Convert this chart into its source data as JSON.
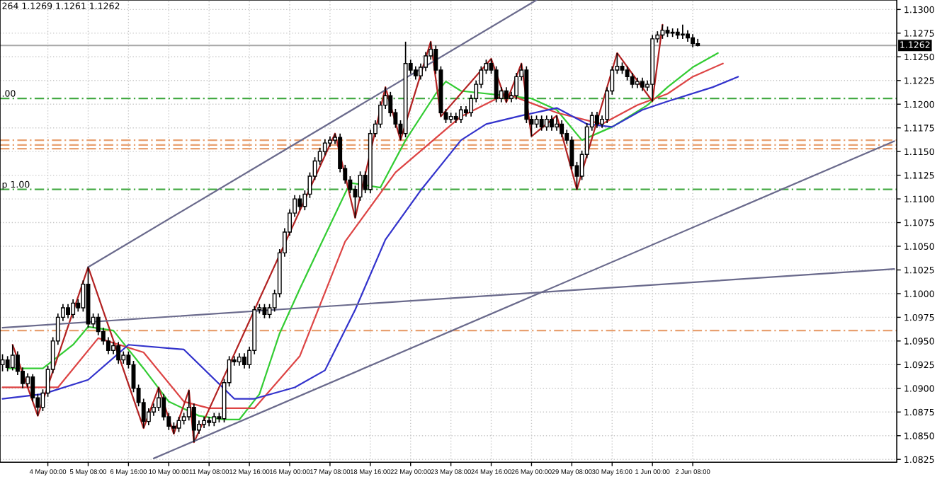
{
  "chart_data": {
    "type": "candlestick",
    "annotations": [
      "264 1.1269 1.1261 1.1262",
      {
        "text": ".00",
        "y": 1.1206
      },
      {
        "text": "p 1.00",
        "y": 1.111
      }
    ],
    "categories": [
      null,
      null,
      null,
      null,
      null,
      null,
      null,
      null,
      null,
      "4 May 00:00",
      null,
      null,
      null,
      null,
      null,
      null,
      null,
      "5 May 08:00",
      null,
      null,
      null,
      null,
      null,
      null,
      null,
      "6 May 16:00",
      null,
      null,
      null,
      null,
      null,
      null,
      null,
      "10 May 00:00",
      null,
      null,
      null,
      null,
      null,
      null,
      null,
      "11 May 08:00",
      null,
      null,
      null,
      null,
      null,
      null,
      null,
      "12 May 16:00",
      null,
      null,
      null,
      null,
      null,
      null,
      null,
      "16 May 00:00",
      null,
      null,
      null,
      null,
      null,
      null,
      null,
      "17 May 08:00",
      null,
      null,
      null,
      null,
      null,
      null,
      null,
      "18 May 16:00",
      null,
      null,
      null,
      null,
      null,
      null,
      null,
      "22 May 00:00",
      null,
      null,
      null,
      null,
      null,
      null,
      null,
      "23 May 08:00",
      null,
      null,
      null,
      null,
      null,
      null,
      null,
      "24 May 16:00",
      null,
      null,
      null,
      null,
      null,
      null,
      null,
      "26 May 00:00",
      null,
      null,
      null,
      null,
      null,
      null,
      null,
      "29 May 08:00",
      null,
      null,
      null,
      null,
      null,
      null,
      null,
      "30 May 16:00",
      null,
      null,
      null,
      null,
      null,
      null,
      null,
      "1 Jun 00:00",
      null,
      null,
      null,
      null,
      null,
      null,
      null,
      "2 Jun 08:00",
      null,
      null,
      null,
      null,
      null,
      null,
      null,
      null,
      null,
      null,
      null,
      null,
      null,
      null,
      null,
      null,
      null,
      null,
      null,
      null,
      null,
      null,
      null,
      null,
      null,
      null,
      null,
      null,
      null,
      null,
      null,
      null,
      null,
      null,
      null,
      null,
      null,
      null,
      null,
      null
    ],
    "ohlc": [
      [
        1.0925,
        1.0936,
        1.0918,
        1.093
      ],
      [
        1.093,
        1.0934,
        1.0918,
        1.0922
      ],
      [
        1.0922,
        1.0946,
        1.0919,
        1.0935
      ],
      [
        1.0935,
        1.0939,
        1.0914,
        1.0918
      ],
      [
        1.0918,
        1.0922,
        1.09,
        1.0905
      ],
      [
        1.0905,
        1.0916,
        1.0901,
        1.0912
      ],
      [
        1.0912,
        1.0915,
        1.0886,
        1.089
      ],
      [
        1.089,
        1.0894,
        1.0871,
        1.088
      ],
      [
        1.088,
        1.0899,
        1.0876,
        1.0895
      ],
      [
        1.0895,
        1.0924,
        1.0891,
        1.092
      ],
      [
        1.092,
        1.0954,
        1.0916,
        1.095
      ],
      [
        1.095,
        1.0979,
        1.0946,
        1.0975
      ],
      [
        1.0975,
        1.0989,
        1.0971,
        1.0985
      ],
      [
        1.0985,
        1.0989,
        1.0974,
        1.0978
      ],
      [
        1.0978,
        1.0994,
        1.0974,
        1.099
      ],
      [
        1.099,
        1.0994,
        1.0981,
        1.0985
      ],
      [
        1.0985,
        1.1014,
        1.0981,
        1.101
      ],
      [
        1.101,
        1.1028,
        1.0964,
        1.0968
      ],
      [
        1.0968,
        1.0979,
        1.0964,
        1.0975
      ],
      [
        1.0975,
        1.0979,
        1.0956,
        1.096
      ],
      [
        1.096,
        1.0964,
        1.0946,
        1.095
      ],
      [
        1.095,
        1.0954,
        1.0936,
        1.094
      ],
      [
        1.094,
        1.0949,
        1.0936,
        1.0945
      ],
      [
        1.0945,
        1.0949,
        1.0926,
        1.093
      ],
      [
        1.093,
        1.0939,
        1.0926,
        1.0935
      ],
      [
        1.0935,
        1.0939,
        1.0921,
        1.0925
      ],
      [
        1.0925,
        1.0929,
        1.0896,
        1.09
      ],
      [
        1.09,
        1.0904,
        1.0881,
        1.0885
      ],
      [
        1.0885,
        1.0889,
        1.0858,
        1.0865
      ],
      [
        1.0865,
        1.0879,
        1.0861,
        1.0875
      ],
      [
        1.0875,
        1.0884,
        1.0871,
        1.088
      ],
      [
        1.088,
        1.0901,
        1.0876,
        1.089
      ],
      [
        1.089,
        1.0894,
        1.0866,
        1.087
      ],
      [
        1.087,
        1.0874,
        1.0856,
        1.086
      ],
      [
        1.086,
        1.0864,
        1.0852,
        1.0858
      ],
      [
        1.0858,
        1.087,
        1.0854,
        1.0866
      ],
      [
        1.0866,
        1.0874,
        1.0862,
        1.087
      ],
      [
        1.087,
        1.0898,
        1.0866,
        1.088
      ],
      [
        1.088,
        1.0884,
        1.0843,
        1.0856
      ],
      [
        1.0856,
        1.0866,
        1.0852,
        1.0862
      ],
      [
        1.0862,
        1.087,
        1.0858,
        1.0866
      ],
      [
        1.0866,
        1.087,
        1.086,
        1.0864
      ],
      [
        1.0864,
        1.0874,
        1.086,
        1.087
      ],
      [
        1.087,
        1.0874,
        1.0864,
        1.0868
      ],
      [
        1.0868,
        1.091,
        1.0864,
        1.0906
      ],
      [
        1.0906,
        1.0934,
        1.0902,
        1.093
      ],
      [
        1.093,
        1.0934,
        1.0924,
        1.0928
      ],
      [
        1.0928,
        1.0937,
        1.0924,
        1.0933
      ],
      [
        1.0933,
        1.0937,
        1.0921,
        1.0925
      ],
      [
        1.0925,
        1.0944,
        1.0921,
        1.094
      ],
      [
        1.094,
        1.0987,
        1.0936,
        1.0983
      ],
      [
        1.0983,
        1.0989,
        1.0979,
        1.0985
      ],
      [
        1.0985,
        1.0989,
        1.0974,
        1.0978
      ],
      [
        1.0978,
        1.0989,
        1.0974,
        1.0985
      ],
      [
        1.0985,
        1.1004,
        1.0981,
        1.1
      ],
      [
        1.1,
        1.1047,
        1.0996,
        1.1043
      ],
      [
        1.1043,
        1.1069,
        1.1039,
        1.1065
      ],
      [
        1.1065,
        1.1089,
        1.1061,
        1.1085
      ],
      [
        1.1085,
        1.1104,
        1.1081,
        1.11
      ],
      [
        1.11,
        1.1104,
        1.1088,
        1.1092
      ],
      [
        1.1092,
        1.1109,
        1.1088,
        1.1105
      ],
      [
        1.1105,
        1.1128,
        1.1101,
        1.1124
      ],
      [
        1.1124,
        1.1144,
        1.112,
        1.114
      ],
      [
        1.114,
        1.1154,
        1.1136,
        1.115
      ],
      [
        1.115,
        1.1163,
        1.1146,
        1.1159
      ],
      [
        1.1159,
        1.1166,
        1.1155,
        1.1162
      ],
      [
        1.1162,
        1.1169,
        1.1158,
        1.1165
      ],
      [
        1.1165,
        1.1169,
        1.1128,
        1.1132
      ],
      [
        1.1132,
        1.1136,
        1.1116,
        1.112
      ],
      [
        1.112,
        1.1124,
        1.1106,
        1.111
      ],
      [
        1.111,
        1.1114,
        1.108,
        1.1102
      ],
      [
        1.1102,
        1.1129,
        1.1098,
        1.1125
      ],
      [
        1.1125,
        1.1129,
        1.1106,
        1.111
      ],
      [
        1.111,
        1.1173,
        1.1106,
        1.1169
      ],
      [
        1.1169,
        1.1183,
        1.1165,
        1.1179
      ],
      [
        1.1179,
        1.1203,
        1.1175,
        1.1199
      ],
      [
        1.1199,
        1.1218,
        1.1195,
        1.1209
      ],
      [
        1.1209,
        1.1213,
        1.1187,
        1.1191
      ],
      [
        1.1191,
        1.1195,
        1.1175,
        1.1179
      ],
      [
        1.1179,
        1.1183,
        1.1162,
        1.1169
      ],
      [
        1.1169,
        1.1266,
        1.1165,
        1.1243
      ],
      [
        1.1243,
        1.1247,
        1.1232,
        1.1236
      ],
      [
        1.1236,
        1.124,
        1.1226,
        1.123
      ],
      [
        1.123,
        1.1243,
        1.1226,
        1.1239
      ],
      [
        1.1239,
        1.1255,
        1.1235,
        1.1251
      ],
      [
        1.1251,
        1.1266,
        1.1247,
        1.1258
      ],
      [
        1.1258,
        1.1262,
        1.1232,
        1.1236
      ],
      [
        1.1236,
        1.124,
        1.1187,
        1.1191
      ],
      [
        1.1191,
        1.1195,
        1.118,
        1.1184
      ],
      [
        1.1184,
        1.1191,
        1.118,
        1.1187
      ],
      [
        1.1187,
        1.1191,
        1.118,
        1.1184
      ],
      [
        1.1184,
        1.1198,
        1.118,
        1.1194
      ],
      [
        1.1194,
        1.1198,
        1.1187,
        1.1191
      ],
      [
        1.1191,
        1.121,
        1.1187,
        1.1206
      ],
      [
        1.1206,
        1.1225,
        1.1202,
        1.1221
      ],
      [
        1.1221,
        1.124,
        1.1217,
        1.1236
      ],
      [
        1.1236,
        1.1247,
        1.1232,
        1.1243
      ],
      [
        1.1243,
        1.1248,
        1.1232,
        1.1236
      ],
      [
        1.1236,
        1.124,
        1.1202,
        1.1206
      ],
      [
        1.1206,
        1.1218,
        1.1202,
        1.1214
      ],
      [
        1.1214,
        1.1218,
        1.1202,
        1.1206
      ],
      [
        1.1206,
        1.1213,
        1.1202,
        1.1209
      ],
      [
        1.1209,
        1.1233,
        1.1205,
        1.1229
      ],
      [
        1.1229,
        1.1243,
        1.1225,
        1.1236
      ],
      [
        1.1236,
        1.124,
        1.118,
        1.1184
      ],
      [
        1.1184,
        1.1188,
        1.1166,
        1.1179
      ],
      [
        1.1179,
        1.1188,
        1.1175,
        1.1184
      ],
      [
        1.1184,
        1.1188,
        1.1172,
        1.1176
      ],
      [
        1.1176,
        1.1188,
        1.1172,
        1.1184
      ],
      [
        1.1184,
        1.1188,
        1.1172,
        1.1176
      ],
      [
        1.1176,
        1.1188,
        1.1172,
        1.1179
      ],
      [
        1.1179,
        1.1183,
        1.1165,
        1.1169
      ],
      [
        1.1169,
        1.1173,
        1.1158,
        1.1162
      ],
      [
        1.1162,
        1.1166,
        1.1131,
        1.1135
      ],
      [
        1.1135,
        1.1139,
        1.111,
        1.1124
      ],
      [
        1.1124,
        1.1151,
        1.112,
        1.1147
      ],
      [
        1.1147,
        1.118,
        1.1143,
        1.1176
      ],
      [
        1.1176,
        1.1192,
        1.1172,
        1.1188
      ],
      [
        1.1188,
        1.1192,
        1.1175,
        1.1179
      ],
      [
        1.1179,
        1.1188,
        1.1175,
        1.1184
      ],
      [
        1.1184,
        1.1218,
        1.118,
        1.1214
      ],
      [
        1.1214,
        1.124,
        1.121,
        1.1236
      ],
      [
        1.1236,
        1.1254,
        1.1232,
        1.124
      ],
      [
        1.124,
        1.1244,
        1.1232,
        1.1236
      ],
      [
        1.1236,
        1.124,
        1.1225,
        1.1229
      ],
      [
        1.1229,
        1.1233,
        1.1217,
        1.1221
      ],
      [
        1.1221,
        1.1228,
        1.1217,
        1.1224
      ],
      [
        1.1224,
        1.1228,
        1.1214,
        1.1218
      ],
      [
        1.1218,
        1.1225,
        1.1214,
        1.1221
      ],
      [
        1.1221,
        1.1273,
        1.1203,
        1.1269
      ],
      [
        1.1269,
        1.1277,
        1.1265,
        1.1273
      ],
      [
        1.1273,
        1.1284,
        1.1269,
        1.1278
      ],
      [
        1.1278,
        1.1282,
        1.1271,
        1.1275
      ],
      [
        1.1275,
        1.128,
        1.1271,
        1.1276
      ],
      [
        1.1276,
        1.128,
        1.1269,
        1.1273
      ],
      [
        1.1273,
        1.1284,
        1.1269,
        1.1274
      ],
      [
        1.1274,
        1.1278,
        1.1266,
        1.127
      ],
      [
        1.127,
        1.1274,
        1.126,
        1.1264
      ],
      [
        1.1264,
        1.1269,
        1.1261,
        1.1262
      ],
      null,
      null,
      null,
      null,
      null,
      null,
      null,
      null,
      null,
      null,
      null,
      null,
      null,
      null,
      null,
      null,
      null,
      null,
      null,
      null,
      null,
      null,
      null,
      null,
      null,
      null,
      null,
      null,
      null,
      null,
      null,
      null,
      null,
      null,
      null,
      null,
      null,
      null,
      null
    ],
    "series": [
      {
        "type": "line",
        "color": "#33cc33",
        "values": [
          null,
          1.0921,
          null,
          null,
          null,
          null,
          null,
          null,
          1.0921,
          null,
          null,
          null,
          null,
          null,
          1.0946,
          null,
          null,
          1.0965,
          null,
          null,
          null,
          null,
          1.0961,
          null,
          null,
          null,
          null,
          null,
          1.0921,
          null,
          null,
          null,
          null,
          1.0886,
          null,
          null,
          null,
          null,
          null,
          1.0871,
          null,
          null,
          null,
          null,
          1.0867,
          null,
          null,
          1.0867,
          null,
          null,
          null,
          1.0894,
          null,
          null,
          null,
          1.0958,
          null,
          null,
          null,
          1.1005,
          null,
          null,
          null,
          1.105,
          null,
          null,
          null,
          null,
          null,
          1.1117,
          null,
          null,
          null,
          null,
          null,
          1.1112,
          null,
          null,
          null,
          null,
          1.1162,
          null,
          null,
          null,
          null,
          null,
          1.1211,
          null,
          1.1224,
          null,
          null,
          1.1214,
          null,
          null,
          null,
          null,
          null,
          null,
          null,
          null,
          null,
          null,
          null,
          null,
          null,
          1.1206,
          null,
          null,
          null,
          null,
          1.1194,
          null,
          null,
          null,
          null,
          1.1162,
          null,
          null,
          null,
          null,
          null,
          1.1176,
          null,
          null,
          null,
          null,
          null,
          null,
          1.1199,
          null,
          null,
          null,
          1.1218,
          null,
          null,
          null,
          null,
          1.1239,
          null,
          null,
          null,
          null,
          1.1254,
          null,
          null,
          null,
          null,
          null,
          null,
          null,
          null,
          null,
          null,
          null,
          null,
          null,
          null,
          null,
          null,
          null,
          null,
          null,
          null,
          null,
          null,
          null,
          null,
          null,
          null,
          null,
          null,
          null,
          null,
          null,
          null,
          null,
          null,
          null
        ]
      },
      {
        "type": "line",
        "color": "#dd4444",
        "values": [
          1.0901,
          null,
          null,
          null,
          null,
          null,
          null,
          null,
          null,
          null,
          null,
          1.0901,
          null,
          null,
          null,
          null,
          null,
          null,
          null,
          1.0953,
          null,
          null,
          null,
          null,
          null,
          null,
          null,
          null,
          1.0938,
          null,
          null,
          null,
          null,
          null,
          null,
          null,
          1.0886,
          null,
          null,
          null,
          null,
          1.0879,
          null,
          null,
          null,
          null,
          null,
          null,
          null,
          null,
          1.0879,
          null,
          null,
          null,
          null,
          null,
          null,
          null,
          null,
          1.0934,
          null,
          null,
          null,
          null,
          null,
          null,
          null,
          null,
          1.1055,
          null,
          null,
          null,
          null,
          null,
          null,
          null,
          null,
          null,
          1.1128,
          null,
          null,
          null,
          null,
          null,
          null,
          null,
          null,
          null,
          null,
          null,
          null,
          1.1187,
          null,
          null,
          null,
          null,
          null,
          null,
          null,
          null,
          1.1211,
          null,
          null,
          null,
          null,
          null,
          null,
          null,
          null,
          null,
          1.1191,
          null,
          null,
          null,
          null,
          null,
          null,
          null,
          null,
          1.1179,
          null,
          null,
          null,
          null,
          null,
          null,
          1.1199,
          null,
          null,
          null,
          null,
          null,
          1.1211,
          null,
          null,
          null,
          null,
          1.1229,
          null,
          null,
          null,
          null,
          null,
          1.1243,
          null,
          null,
          null,
          null,
          null,
          null,
          null,
          null,
          null,
          null,
          null,
          null,
          null,
          null,
          null,
          null,
          null,
          null,
          null,
          null,
          null,
          null,
          null,
          null,
          null,
          null,
          null,
          null,
          null,
          null,
          null,
          null,
          null,
          null
        ]
      },
      {
        "type": "line",
        "color": "#3333cc",
        "values": [
          1.0889,
          null,
          null,
          null,
          null,
          null,
          null,
          null,
          1.0894,
          null,
          null,
          null,
          null,
          null,
          null,
          null,
          null,
          1.0909,
          null,
          null,
          null,
          null,
          null,
          null,
          null,
          1.0946,
          null,
          null,
          null,
          null,
          null,
          null,
          null,
          null,
          null,
          null,
          1.0941,
          null,
          null,
          null,
          null,
          null,
          null,
          null,
          null,
          null,
          1.0889,
          null,
          null,
          null,
          1.0889,
          null,
          null,
          null,
          null,
          null,
          null,
          null,
          1.0901,
          null,
          null,
          null,
          null,
          null,
          1.0919,
          null,
          null,
          null,
          null,
          null,
          1.0983,
          null,
          null,
          null,
          null,
          null,
          1.1057,
          null,
          null,
          null,
          null,
          null,
          null,
          1.1109,
          null,
          null,
          null,
          null,
          null,
          null,
          null,
          1.1162,
          null,
          null,
          null,
          null,
          1.1179,
          null,
          null,
          null,
          null,
          null,
          null,
          1.1188,
          null,
          null,
          null,
          null,
          null,
          null,
          1.1196,
          null,
          null,
          null,
          null,
          null,
          1.1179,
          null,
          null,
          null,
          null,
          1.1176,
          null,
          null,
          null,
          null,
          null,
          1.1194,
          null,
          null,
          null,
          null,
          1.1203,
          null,
          null,
          null,
          null,
          null,
          null,
          null,
          null,
          1.1218,
          null,
          null,
          null,
          null,
          1.1229,
          null,
          null,
          null,
          null,
          null,
          null,
          null,
          null,
          null,
          null,
          null,
          null,
          null,
          null,
          null,
          null,
          null,
          null,
          null,
          null,
          null,
          null,
          null,
          null,
          null,
          null,
          null,
          null,
          null,
          null,
          null
        ]
      },
      {
        "type": "line",
        "color": "#b22222",
        "values": [
          null,
          null,
          1.0946,
          null,
          null,
          null,
          null,
          1.0871,
          null,
          null,
          null,
          null,
          null,
          null,
          null,
          null,
          null,
          1.1028,
          null,
          null,
          null,
          null,
          null,
          null,
          null,
          null,
          null,
          null,
          1.0858,
          null,
          null,
          1.0901,
          null,
          null,
          1.0852,
          null,
          null,
          1.0898,
          1.0843,
          null,
          null,
          null,
          null,
          null,
          null,
          null,
          null,
          null,
          null,
          null,
          null,
          null,
          null,
          null,
          null,
          null,
          null,
          null,
          null,
          null,
          null,
          null,
          null,
          null,
          null,
          null,
          1.1169,
          null,
          null,
          null,
          1.108,
          null,
          null,
          null,
          null,
          null,
          1.1218,
          null,
          null,
          1.1162,
          null,
          null,
          null,
          null,
          null,
          1.1266,
          null,
          1.1187,
          null,
          null,
          null,
          null,
          null,
          null,
          null,
          null,
          null,
          1.1248,
          null,
          null,
          1.1202,
          null,
          null,
          1.1243,
          null,
          1.1166,
          null,
          null,
          null,
          null,
          1.1188,
          null,
          null,
          null,
          1.111,
          null,
          null,
          null,
          null,
          null,
          null,
          null,
          1.1254,
          null,
          null,
          null,
          null,
          null,
          null,
          1.1203,
          null,
          1.1284,
          null,
          null,
          null,
          null,
          null,
          null,
          null,
          null,
          null,
          null,
          null,
          null,
          null,
          null,
          null,
          null,
          null,
          null,
          null,
          null,
          null,
          null,
          null,
          null,
          null,
          null,
          null,
          null,
          null,
          null,
          null,
          null,
          null,
          null,
          null,
          null,
          null,
          null,
          null,
          null,
          null,
          null,
          null,
          null,
          null,
          null
        ]
      },
      {
        "type": "line",
        "color": "#6a6a8c",
        "values": [
          null,
          null,
          null,
          null,
          null,
          null,
          null,
          null,
          null,
          null,
          null,
          null,
          null,
          null,
          null,
          null,
          null,
          1.1028,
          null,
          null,
          null,
          null,
          null,
          null,
          null,
          null,
          null,
          null,
          null,
          null,
          null,
          null,
          null,
          null,
          null,
          null,
          null,
          null,
          null,
          null,
          null,
          null,
          null,
          null,
          null,
          null,
          null,
          null,
          null,
          null,
          null,
          null,
          null,
          null,
          null,
          null,
          null,
          null,
          null,
          null,
          null,
          null,
          null,
          null,
          null,
          null,
          null,
          null,
          null,
          null,
          null,
          null,
          null,
          null,
          null,
          null,
          null,
          null,
          null,
          null,
          null,
          null,
          null,
          null,
          null,
          null,
          null,
          null,
          null,
          null,
          null,
          null,
          null,
          null,
          null,
          null,
          null,
          null,
          null,
          null,
          null,
          null,
          null,
          null,
          null,
          null,
          1.131,
          null,
          null,
          null,
          null,
          null,
          null,
          null,
          null,
          null,
          null,
          null,
          null,
          null,
          null,
          null,
          null,
          null,
          null,
          null,
          null,
          null,
          null,
          null,
          null,
          null,
          null,
          null,
          null,
          null,
          null,
          null,
          null,
          null,
          null,
          null,
          null,
          null,
          null,
          null,
          null,
          null,
          null,
          null,
          null,
          null,
          null,
          null,
          null,
          null,
          null,
          null,
          null,
          null,
          null,
          null,
          null,
          null,
          null,
          null,
          null,
          null,
          null,
          null,
          null,
          null,
          null,
          null,
          null,
          null,
          null,
          null
        ]
      },
      {
        "type": "line",
        "color": "#6a6a8c",
        "values": [
          null,
          null,
          null,
          null,
          null,
          null,
          null,
          null,
          null,
          null,
          null,
          null,
          null,
          null,
          null,
          null,
          null,
          null,
          null,
          null,
          null,
          null,
          null,
          null,
          null,
          null,
          null,
          null,
          null,
          null,
          1.0826,
          null,
          null,
          null,
          null,
          null,
          null,
          null,
          null,
          null,
          null,
          null,
          null,
          null,
          null,
          null,
          null,
          null,
          null,
          null,
          null,
          null,
          null,
          null,
          null,
          null,
          null,
          null,
          null,
          null,
          null,
          null,
          null,
          null,
          null,
          null,
          null,
          null,
          null,
          null,
          null,
          null,
          null,
          null,
          null,
          null,
          null,
          null,
          null,
          null,
          null,
          null,
          null,
          null,
          null,
          null,
          null,
          null,
          null,
          null,
          null,
          null,
          null,
          null,
          null,
          null,
          null,
          null,
          null,
          null,
          null,
          null,
          null,
          null,
          null,
          null,
          null,
          null,
          null,
          null,
          null,
          null,
          null,
          null,
          null,
          null,
          null,
          null,
          null,
          null,
          null,
          null,
          null,
          null,
          null,
          null,
          null,
          null,
          null,
          null,
          null,
          null,
          null,
          null,
          null,
          null,
          null,
          null,
          null,
          null,
          null,
          null,
          null,
          null,
          null,
          null,
          null,
          null,
          null,
          null,
          null,
          null,
          null,
          null,
          null,
          null,
          null,
          null,
          null,
          null,
          null,
          null,
          null,
          null,
          null,
          null,
          null,
          null,
          null,
          null,
          null,
          null,
          null,
          null,
          null,
          null,
          null,
          1.1161
        ]
      },
      {
        "type": "line",
        "color": "#6a6a8c",
        "values": [
          1.0964,
          null,
          null,
          null,
          null,
          null,
          null,
          null,
          null,
          null,
          null,
          null,
          null,
          null,
          null,
          null,
          null,
          null,
          null,
          null,
          null,
          null,
          null,
          null,
          null,
          null,
          null,
          null,
          null,
          null,
          null,
          null,
          null,
          null,
          null,
          null,
          null,
          null,
          null,
          null,
          null,
          null,
          null,
          null,
          null,
          null,
          null,
          null,
          null,
          null,
          null,
          null,
          null,
          null,
          null,
          null,
          null,
          null,
          null,
          null,
          null,
          null,
          null,
          null,
          null,
          null,
          null,
          null,
          null,
          null,
          null,
          null,
          null,
          null,
          null,
          null,
          null,
          null,
          null,
          null,
          null,
          null,
          null,
          null,
          null,
          null,
          null,
          null,
          null,
          null,
          null,
          null,
          null,
          null,
          null,
          null,
          null,
          null,
          null,
          null,
          null,
          null,
          null,
          null,
          null,
          null,
          null,
          null,
          null,
          null,
          null,
          null,
          null,
          null,
          null,
          null,
          null,
          null,
          null,
          null,
          null,
          null,
          null,
          null,
          null,
          null,
          null,
          null,
          null,
          null,
          null,
          null,
          null,
          null,
          null,
          null,
          null,
          null,
          null,
          null,
          null,
          null,
          null,
          null,
          null,
          null,
          null,
          null,
          null,
          null,
          null,
          null,
          null,
          null,
          null,
          null,
          null,
          null,
          null,
          null,
          null,
          null,
          null,
          null,
          null,
          null,
          null,
          null,
          null,
          null,
          null,
          null,
          null,
          null,
          null,
          null,
          null,
          1.1026
        ]
      }
    ],
    "ref_lines": [
      {
        "axis": "y",
        "value": 1.1206,
        "color": "#44aa44",
        "line_style": "dashed"
      },
      {
        "axis": "y",
        "value": 1.111,
        "color": "#44aa44",
        "line_style": "dashed"
      },
      {
        "axis": "y",
        "value": 1.1162,
        "color": "#e8a070",
        "line_style": "dashed"
      },
      {
        "axis": "y",
        "value": 1.1157,
        "color": "#e8a070",
        "line_style": "dashed"
      },
      {
        "axis": "y",
        "value": 1.1153,
        "color": "#e8a070",
        "line_style": "dashed"
      },
      {
        "axis": "y",
        "value": 1.0961,
        "color": "#e8a070",
        "line_style": "dashed"
      },
      {
        "axis": "y",
        "value": 1.1262,
        "label": "1.1262",
        "color": "#a8a8a8",
        "line_style": "solid"
      }
    ],
    "ylim": [
      1.0822,
      1.131
    ],
    "yticks": [
      {
        "value": 1.0825,
        "label": "1.0825"
      },
      {
        "value": 1.085,
        "label": "1.0850"
      },
      {
        "value": 1.0875,
        "label": "1.0875"
      },
      {
        "value": 1.09,
        "label": "1.0900"
      },
      {
        "value": 1.0925,
        "label": "1.0925"
      },
      {
        "value": 1.095,
        "label": "1.0950"
      },
      {
        "value": 1.0975,
        "label": "1.0975"
      },
      {
        "value": 1.1,
        "label": "1.1000"
      },
      {
        "value": 1.1025,
        "label": "1.1025"
      },
      {
        "value": 1.105,
        "label": "1.1050"
      },
      {
        "value": 1.1075,
        "label": "1.1075"
      },
      {
        "value": 1.11,
        "label": "1.1100"
      },
      {
        "value": 1.1125,
        "label": "1.1125"
      },
      {
        "value": 1.115,
        "label": "1.1150"
      },
      {
        "value": 1.1175,
        "label": "1.1175"
      },
      {
        "value": 1.12,
        "label": "1.1200"
      },
      {
        "value": 1.1225,
        "label": "1.1225"
      },
      {
        "value": 1.125,
        "label": "1.1250"
      },
      {
        "value": 1.1275,
        "label": "1.1275"
      },
      {
        "value": 1.13,
        "label": "1.1300"
      }
    ],
    "grid": true
  }
}
